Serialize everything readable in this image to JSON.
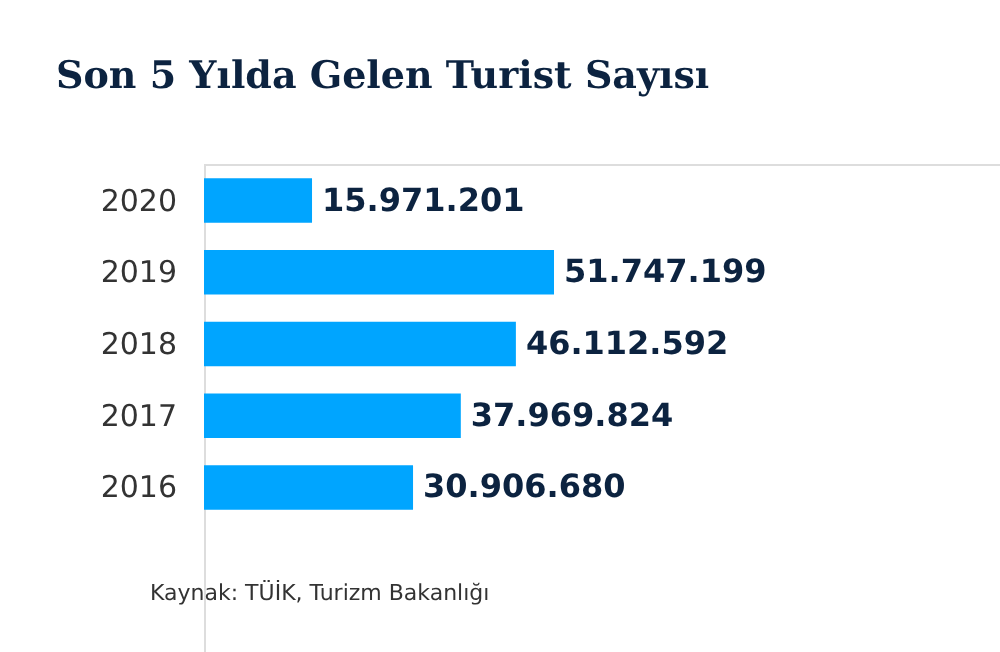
{
  "chart_data": {
    "type": "bar",
    "orientation": "horizontal",
    "title": "Son 5 Yılda Gelen Turist Sayısı",
    "categories": [
      "2020",
      "2019",
      "2018",
      "2017",
      "2016"
    ],
    "values": [
      15971201,
      51747199,
      46112592,
      37969824,
      30906680
    ],
    "value_labels": [
      "15.971.201",
      "51.747.199",
      "46.112.592",
      "37.969.824",
      "30.906.680"
    ],
    "color": "#00a5ff",
    "tick_labels": "y",
    "annotations": [
      "Kaynak: TÜİK, Turizm Bakanlığı"
    ]
  }
}
